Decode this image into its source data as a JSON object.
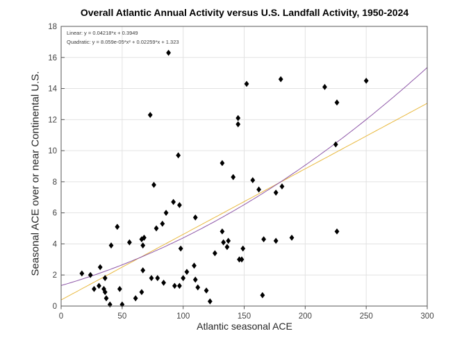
{
  "figure": {
    "title": "Overall Atlantic Annual Activity versus U.S. Landfall Activity, 1950-2024"
  },
  "chart_data": {
    "type": "scatter",
    "title": "Overall Atlantic Annual Activity versus U.S. Landfall Activity, 1950-2024",
    "xlabel": "Atlantic seasonal ACE",
    "ylabel": "Seasonal ACE over or near Continental U.S.",
    "xlim": [
      0,
      300
    ],
    "ylim": [
      0,
      18
    ],
    "xticks": [
      0,
      50,
      100,
      150,
      200,
      250,
      300
    ],
    "yticks": [
      0,
      2,
      4,
      6,
      8,
      10,
      12,
      14,
      16,
      18
    ],
    "grid": true,
    "marker": {
      "shape": "diamond",
      "color": "#000000"
    },
    "legend": {
      "position": "top-left",
      "entries": [
        {
          "name": "linear-fit-equation",
          "label": "Linear:  y = 0.04218*x + 0.3949"
        },
        {
          "name": "quadratic-fit-equation",
          "label": "Quadratic:  y = 8.059e-05*x² + 0.02259*x + 1.323"
        }
      ]
    },
    "fits": [
      {
        "name": "linear",
        "coeffs": [
          0.3949,
          0.04218
        ],
        "color": "#E9B93F"
      },
      {
        "name": "quadratic",
        "coeffs": [
          1.323,
          0.02259,
          8.059e-05
        ],
        "color": "#8E57A8"
      }
    ],
    "points": [
      [
        88,
        16.3
      ],
      [
        73,
        12.3
      ],
      [
        145,
        12.1
      ],
      [
        145,
        11.7
      ],
      [
        152,
        14.3
      ],
      [
        180,
        14.6
      ],
      [
        216,
        14.1
      ],
      [
        226,
        13.1
      ],
      [
        250,
        14.5
      ],
      [
        225,
        10.4
      ],
      [
        96,
        9.7
      ],
      [
        132,
        9.2
      ],
      [
        141,
        8.3
      ],
      [
        76,
        7.8
      ],
      [
        157,
        8.1
      ],
      [
        162,
        7.5
      ],
      [
        181,
        7.7
      ],
      [
        176,
        7.3
      ],
      [
        92,
        6.7
      ],
      [
        97,
        6.5
      ],
      [
        86,
        6.0
      ],
      [
        110,
        5.7
      ],
      [
        46,
        5.1
      ],
      [
        78,
        5.0
      ],
      [
        83,
        5.3
      ],
      [
        226,
        4.8
      ],
      [
        132,
        4.8
      ],
      [
        133,
        4.1
      ],
      [
        137,
        4.2
      ],
      [
        136,
        3.8
      ],
      [
        166,
        4.3
      ],
      [
        176,
        4.2
      ],
      [
        189,
        4.4
      ],
      [
        149,
        3.7
      ],
      [
        146,
        3.0
      ],
      [
        148,
        3.0
      ],
      [
        56,
        4.1
      ],
      [
        66,
        4.3
      ],
      [
        68,
        4.4
      ],
      [
        67,
        3.9
      ],
      [
        41,
        3.9
      ],
      [
        98,
        3.7
      ],
      [
        126,
        3.4
      ],
      [
        17,
        2.1
      ],
      [
        24,
        2.0
      ],
      [
        32,
        2.5
      ],
      [
        36,
        1.8
      ],
      [
        27,
        1.1
      ],
      [
        31,
        1.3
      ],
      [
        35,
        1.1
      ],
      [
        36,
        0.9
      ],
      [
        37,
        0.5
      ],
      [
        40,
        0.1
      ],
      [
        48,
        1.1
      ],
      [
        50,
        0.1
      ],
      [
        61,
        0.5
      ],
      [
        66,
        0.9
      ],
      [
        67,
        2.3
      ],
      [
        74,
        1.8
      ],
      [
        79,
        1.8
      ],
      [
        84,
        1.5
      ],
      [
        93,
        1.3
      ],
      [
        97,
        1.3
      ],
      [
        100,
        1.8
      ],
      [
        103,
        2.2
      ],
      [
        109,
        2.6
      ],
      [
        110,
        1.7
      ],
      [
        112,
        1.2
      ],
      [
        119,
        1.0
      ],
      [
        122,
        0.3
      ],
      [
        165,
        0.7
      ]
    ]
  },
  "colors": {
    "grid": "#E2E2E2",
    "frame": "#555555",
    "tick_text": "#424242",
    "marker": "#000000"
  }
}
